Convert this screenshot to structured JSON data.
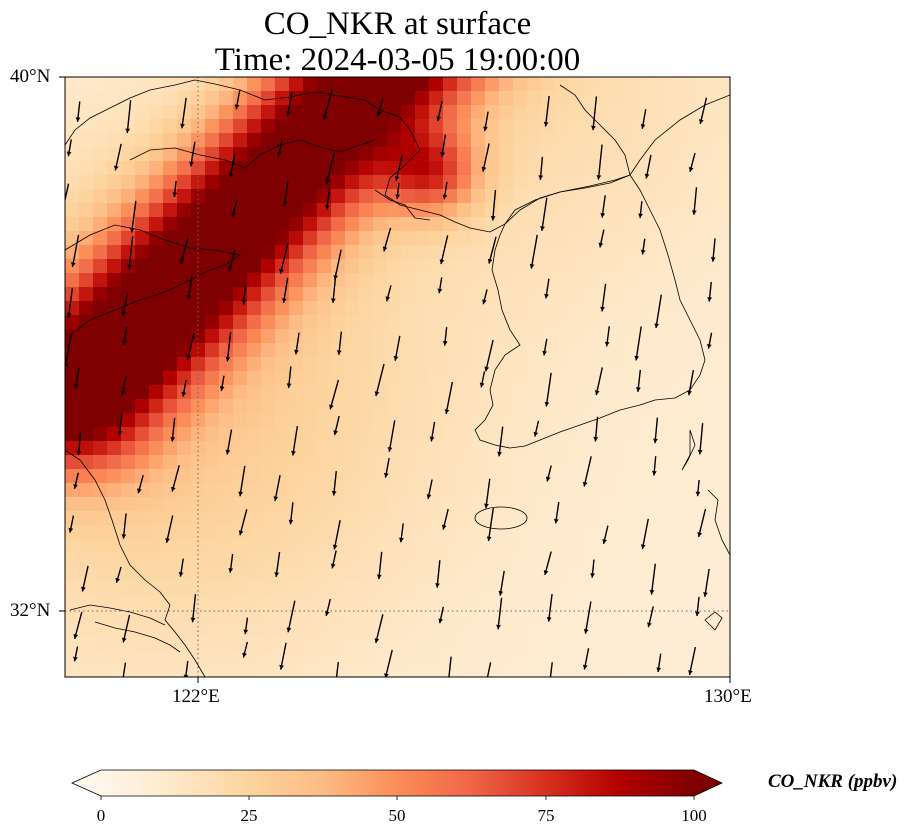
{
  "title": {
    "line1": "CO_NKR at surface",
    "line2": "Time: 2024-03-05 19:00:00"
  },
  "map": {
    "lat_ticks": [
      "40°N",
      "32°N"
    ],
    "lon_ticks": [
      "122°E",
      "130°E"
    ],
    "extent": {
      "lon_min": 120,
      "lon_max": 130,
      "lat_min": 31,
      "lat_max": 40
    },
    "gridlines": "dotted"
  },
  "colorbar": {
    "label": "CO_NKR (ppbv)",
    "ticks": [
      "0",
      "25",
      "50",
      "75",
      "100"
    ],
    "min": 0,
    "max": 100,
    "colormap": "OrRd",
    "extend": "both",
    "colors": [
      "#fff7ec",
      "#fee8c8",
      "#fdd49e",
      "#fdbb84",
      "#fc8d59",
      "#ef6548",
      "#d7301f",
      "#b30000",
      "#7f0000"
    ]
  },
  "wind_field": "southward (NNE to SSW) arrows"
}
